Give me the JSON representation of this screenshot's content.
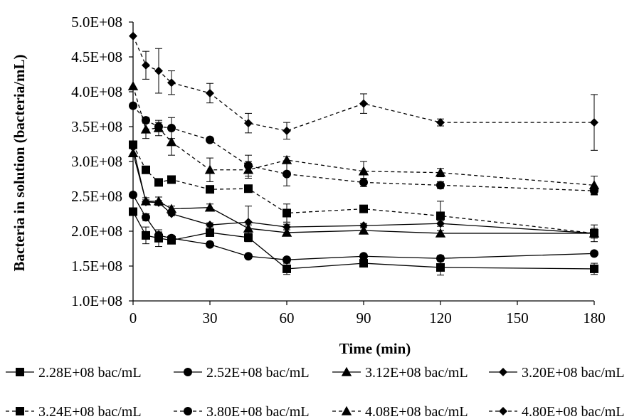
{
  "chart_data": {
    "type": "line",
    "xlabel": "Time (min)",
    "ylabel": "Bacteria in solution (bacteria/mL)",
    "x_ticks": [
      0,
      30,
      60,
      90,
      120,
      150,
      180
    ],
    "x_tick_labels": [
      "0",
      "30",
      "60",
      "90",
      "120",
      "150",
      "180"
    ],
    "xlim": [
      0,
      180
    ],
    "y_ticks": [
      100000000,
      150000000,
      200000000,
      250000000,
      300000000,
      350000000,
      400000000,
      450000000,
      500000000
    ],
    "y_tick_labels": [
      "1.0E+08",
      "1.5E+08",
      "2.0E+08",
      "2.5E+08",
      "3.0E+08",
      "3.5E+08",
      "4.0E+08",
      "4.5E+08",
      "5.0E+08"
    ],
    "ylim": [
      100000000,
      500000000
    ],
    "grid": false,
    "legend_position": "bottom",
    "x": [
      0,
      5,
      10,
      15,
      30,
      45,
      60,
      90,
      120,
      180
    ],
    "series": [
      {
        "name": "2.28E+08 bac/mL",
        "marker": "square",
        "dash": "solid",
        "values": [
          228000000,
          194000000,
          190000000,
          187000000,
          198000000,
          191000000,
          146000000,
          154000000,
          148000000,
          146000000
        ],
        "errors": [
          0,
          12000000,
          12000000,
          5000000,
          5000000,
          6000000,
          8000000,
          4000000,
          11000000,
          8000000
        ]
      },
      {
        "name": "2.52E+08 bac/mL",
        "marker": "circle",
        "dash": "solid",
        "values": [
          252000000,
          220000000,
          194000000,
          190000000,
          181000000,
          164000000,
          159000000,
          164000000,
          161000000,
          168000000
        ],
        "errors": [
          0,
          5000000,
          5000000,
          4000000,
          3000000,
          3000000,
          3000000,
          3000000,
          4000000,
          3000000
        ]
      },
      {
        "name": "3.12E+08 bac/mL",
        "marker": "triangle",
        "dash": "solid",
        "values": [
          312000000,
          243000000,
          243000000,
          232000000,
          234000000,
          204000000,
          198000000,
          201000000,
          197000000,
          197000000
        ],
        "errors": [
          0,
          5000000,
          6000000,
          4000000,
          5000000,
          5000000,
          4000000,
          4000000,
          4000000,
          12000000
        ]
      },
      {
        "name": "3.20E+08 bac/mL",
        "marker": "diamond",
        "dash": "solid",
        "values": [
          320000000,
          242000000,
          241000000,
          225000000,
          209000000,
          213000000,
          206000000,
          208000000,
          211000000,
          197000000
        ],
        "errors": [
          0,
          3000000,
          3000000,
          3000000,
          3000000,
          23000000,
          4000000,
          3000000,
          4000000,
          4000000
        ]
      },
      {
        "name": "3.24E+08 bac/mL",
        "marker": "square",
        "dash": "dashed",
        "values": [
          324000000,
          288000000,
          270000000,
          274000000,
          260000000,
          261000000,
          226000000,
          232000000,
          222000000,
          197000000
        ],
        "errors": [
          0,
          3000000,
          4000000,
          3000000,
          3000000,
          3000000,
          13000000,
          3000000,
          21000000,
          7000000
        ]
      },
      {
        "name": "3.80E+08 bac/mL",
        "marker": "circle",
        "dash": "dashed",
        "values": [
          380000000,
          359000000,
          350000000,
          348000000,
          331000000,
          294000000,
          282000000,
          270000000,
          266000000,
          258000000
        ],
        "errors": [
          0,
          4000000,
          6000000,
          15000000,
          3000000,
          15000000,
          17000000,
          6000000,
          5000000,
          6000000
        ]
      },
      {
        "name": "4.08E+08 bac/mL",
        "marker": "triangle",
        "dash": "dashed",
        "values": [
          408000000,
          346000000,
          348000000,
          328000000,
          288000000,
          288000000,
          302000000,
          286000000,
          284000000,
          266000000
        ],
        "errors": [
          0,
          13000000,
          11000000,
          19000000,
          17000000,
          12000000,
          5000000,
          14000000,
          6000000,
          13000000
        ]
      },
      {
        "name": "4.80E+08 bac/mL",
        "marker": "diamond",
        "dash": "dashed",
        "values": [
          480000000,
          438000000,
          430000000,
          413000000,
          398000000,
          355000000,
          344000000,
          383000000,
          356000000,
          356000000
        ],
        "errors": [
          0,
          20000000,
          32000000,
          17000000,
          14000000,
          14000000,
          12000000,
          14000000,
          5000000,
          40000000
        ]
      }
    ]
  }
}
